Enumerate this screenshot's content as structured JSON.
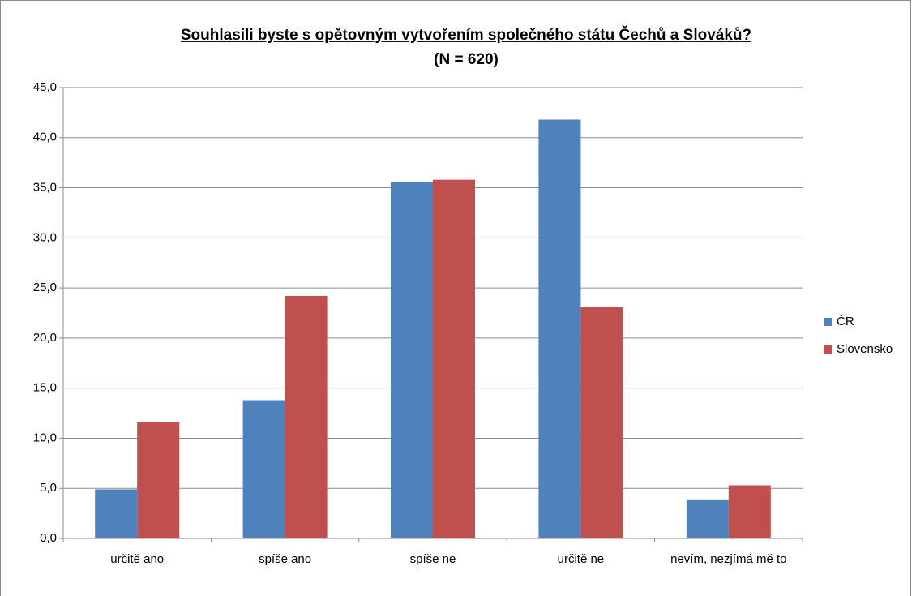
{
  "chart_data": {
    "type": "bar",
    "title": "Souhlasili byste s opětovným vytvořením společného státu Čechů a Slováků?",
    "subtitle": "(N = 620)",
    "categories": [
      "určitě ano",
      "spíše ano",
      "spíše ne",
      "určitě ne",
      "nevím, nezjímá mě to"
    ],
    "series": [
      {
        "name": "ČR",
        "color": "#4f81bd",
        "values": [
          4.9,
          13.8,
          35.6,
          41.8,
          3.9
        ]
      },
      {
        "name": "Slovensko",
        "color": "#c0504d",
        "values": [
          11.6,
          24.2,
          35.8,
          23.1,
          5.3
        ]
      }
    ],
    "ylim": [
      0,
      45
    ],
    "yticks": [
      {
        "value": 0,
        "label": "0,0"
      },
      {
        "value": 5,
        "label": "5,0"
      },
      {
        "value": 10,
        "label": "10,0"
      },
      {
        "value": 15,
        "label": "15,0"
      },
      {
        "value": 20,
        "label": "20,0"
      },
      {
        "value": 25,
        "label": "25,0"
      },
      {
        "value": 30,
        "label": "30,0"
      },
      {
        "value": 35,
        "label": "35,0"
      },
      {
        "value": 40,
        "label": "40,0"
      },
      {
        "value": 45,
        "label": "45,0"
      }
    ],
    "grid": true,
    "legend": "right"
  }
}
